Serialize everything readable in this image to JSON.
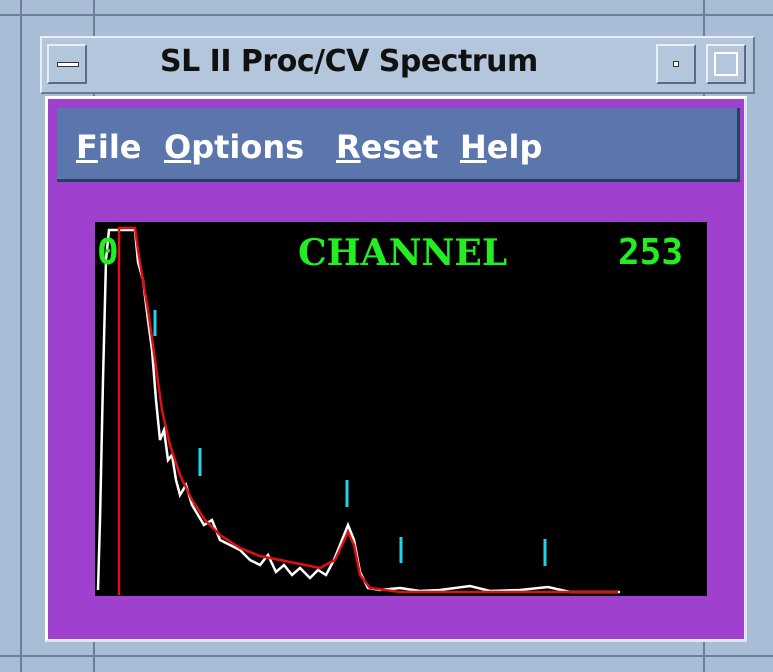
{
  "window": {
    "title": "SL II Proc/CV Spectrum"
  },
  "menu": {
    "items": [
      "File",
      "Options",
      "Reset",
      "Help"
    ]
  },
  "plot": {
    "left_label": "0",
    "center_label": "CHANNEL",
    "right_label": "253"
  }
}
